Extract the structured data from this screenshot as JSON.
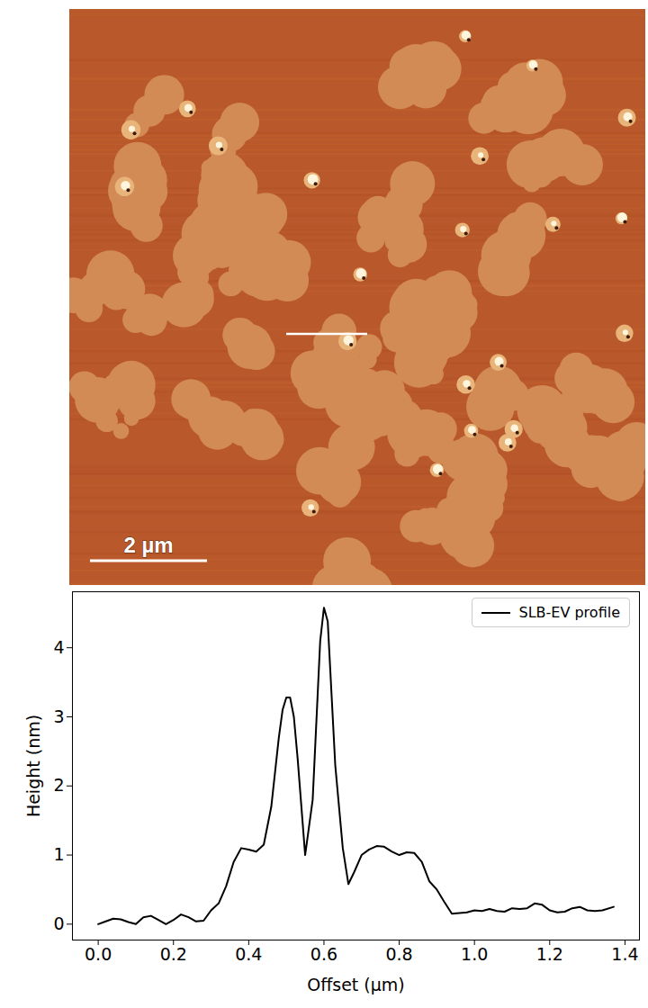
{
  "chart_data": {
    "type": "line",
    "scale_bar_label": "2 µm",
    "x_label": "Offset (µm)",
    "y_label": "Height (nm)",
    "x": [
      0.0,
      0.02,
      0.04,
      0.06,
      0.08,
      0.1,
      0.12,
      0.14,
      0.16,
      0.18,
      0.2,
      0.22,
      0.24,
      0.26,
      0.28,
      0.3,
      0.32,
      0.34,
      0.36,
      0.38,
      0.4,
      0.42,
      0.44,
      0.46,
      0.48,
      0.49,
      0.5,
      0.51,
      0.52,
      0.53,
      0.55,
      0.57,
      0.59,
      0.6,
      0.61,
      0.63,
      0.65,
      0.665,
      0.68,
      0.7,
      0.72,
      0.74,
      0.76,
      0.78,
      0.8,
      0.82,
      0.84,
      0.86,
      0.88,
      0.9,
      0.92,
      0.94,
      0.96,
      0.98,
      1.0,
      1.02,
      1.04,
      1.06,
      1.08,
      1.1,
      1.12,
      1.14,
      1.16,
      1.18,
      1.2,
      1.22,
      1.24,
      1.26,
      1.28,
      1.3,
      1.32,
      1.34,
      1.37
    ],
    "series": [
      {
        "name": "SLB-EV profile",
        "color": "#000000",
        "values": [
          0.0,
          0.04,
          0.08,
          0.07,
          0.03,
          0.0,
          0.1,
          0.12,
          0.06,
          0.0,
          0.06,
          0.14,
          0.1,
          0.04,
          0.05,
          0.2,
          0.3,
          0.55,
          0.9,
          1.1,
          1.08,
          1.05,
          1.15,
          1.7,
          2.7,
          3.1,
          3.28,
          3.28,
          3.0,
          2.4,
          1.0,
          1.8,
          4.1,
          4.58,
          4.38,
          2.3,
          1.1,
          0.58,
          0.75,
          1.0,
          1.08,
          1.13,
          1.12,
          1.05,
          1.0,
          1.04,
          1.03,
          0.9,
          0.62,
          0.5,
          0.32,
          0.15,
          0.16,
          0.17,
          0.2,
          0.19,
          0.22,
          0.19,
          0.18,
          0.23,
          0.22,
          0.23,
          0.3,
          0.28,
          0.2,
          0.17,
          0.18,
          0.23,
          0.25,
          0.2,
          0.19,
          0.2,
          0.25
        ]
      }
    ],
    "xlim": [
      -0.0685,
      1.4385
    ],
    "xticks": [
      {
        "value": 0,
        "label": "0.0"
      },
      {
        "value": 0.2,
        "label": "0.2"
      },
      {
        "value": 0.4,
        "label": "0.4"
      },
      {
        "value": 0.6,
        "label": "0.6"
      },
      {
        "value": 0.8,
        "label": "0.8"
      },
      {
        "value": 1,
        "label": "1.0"
      },
      {
        "value": 1.2,
        "label": "1.2"
      },
      {
        "value": 1.4,
        "label": "1.4"
      }
    ],
    "ylim": [
      -0.23,
      4.81
    ],
    "yticks": [
      0,
      1,
      2,
      3,
      4
    ],
    "grid": false,
    "legend": "upper right"
  }
}
